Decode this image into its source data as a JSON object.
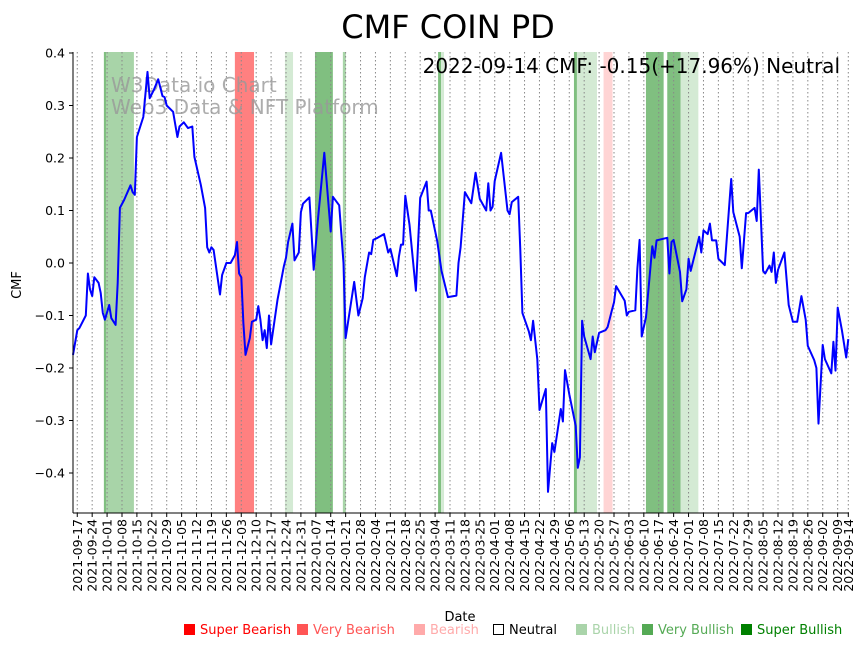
{
  "chart_data": {
    "type": "line",
    "title": "CMF COIN PD",
    "xlabel": "Date",
    "ylabel": "CMF",
    "annotation": "2022-09-14 CMF: -0.15(+17.96%) Neutral",
    "watermark": [
      "W3Data.io Chart",
      "Web3 Data & NFT Platform"
    ],
    "x_start_date": "2021-09-15",
    "x_unit": "days since x_start_date",
    "xlim_days": [
      0,
      364
    ],
    "ylim": [
      -0.477,
      0.4
    ],
    "yticks": [
      -0.4,
      -0.3,
      -0.2,
      -0.1,
      0.0,
      0.1,
      0.2,
      0.3,
      0.4
    ],
    "ytick_labels": [
      "−0.4",
      "−0.3",
      "−0.2",
      "−0.1",
      "0.0",
      "0.1",
      "0.2",
      "0.3",
      "0.4"
    ],
    "xtick_days": [
      2,
      9,
      16,
      23,
      30,
      37,
      44,
      51,
      58,
      65,
      72,
      79,
      86,
      93,
      100,
      107,
      114,
      121,
      128,
      135,
      142,
      149,
      156,
      163,
      170,
      177,
      184,
      191,
      198,
      205,
      212,
      219,
      226,
      233,
      240,
      247,
      254,
      261,
      268,
      275,
      282,
      289,
      296,
      303,
      310,
      317,
      324,
      331,
      338,
      345,
      352,
      359,
      364
    ],
    "xtick_labels": [
      "2021-09-17",
      "2021-09-24",
      "2021-10-01",
      "2021-10-08",
      "2021-10-15",
      "2021-10-22",
      "2021-10-29",
      "2021-11-05",
      "2021-11-12",
      "2021-11-19",
      "2021-11-26",
      "2021-12-03",
      "2021-12-10",
      "2021-12-17",
      "2021-12-24",
      "2021-12-31",
      "2022-01-07",
      "2022-01-14",
      "2022-01-21",
      "2022-01-28",
      "2022-02-04",
      "2022-02-11",
      "2022-02-18",
      "2022-02-25",
      "2022-03-04",
      "2022-03-11",
      "2022-03-18",
      "2022-03-25",
      "2022-04-01",
      "2022-04-08",
      "2022-04-15",
      "2022-04-22",
      "2022-04-29",
      "2022-05-06",
      "2022-05-13",
      "2022-05-20",
      "2022-05-27",
      "2022-06-03",
      "2022-06-10",
      "2022-06-17",
      "2022-06-24",
      "2022-07-01",
      "2022-07-08",
      "2022-07-15",
      "2022-07-22",
      "2022-07-29",
      "2022-08-05",
      "2022-08-12",
      "2022-08-19",
      "2022-08-26",
      "2022-09-02",
      "2022-09-09",
      "2022-09-14"
    ],
    "grid": "x-dotted",
    "line_color": "#0000ff",
    "series": [
      {
        "name": "CMF",
        "points": [
          [
            0,
            -0.175
          ],
          [
            2,
            -0.128
          ],
          [
            3,
            -0.124
          ],
          [
            6,
            -0.1
          ],
          [
            7,
            -0.02
          ],
          [
            8,
            -0.05
          ],
          [
            9,
            -0.063
          ],
          [
            10,
            -0.027
          ],
          [
            12,
            -0.038
          ],
          [
            13,
            -0.057
          ],
          [
            14,
            -0.095
          ],
          [
            15,
            -0.108
          ],
          [
            17,
            -0.08
          ],
          [
            18,
            -0.105
          ],
          [
            20,
            -0.118
          ],
          [
            21,
            -0.038
          ],
          [
            22,
            0.105
          ],
          [
            24,
            0.12
          ],
          [
            27,
            0.148
          ],
          [
            28,
            0.135
          ],
          [
            29,
            0.13
          ],
          [
            30,
            0.24
          ],
          [
            33,
            0.278
          ],
          [
            35,
            0.364
          ],
          [
            36,
            0.314
          ],
          [
            38,
            0.33
          ],
          [
            40,
            0.35
          ],
          [
            42,
            0.318
          ],
          [
            43,
            0.316
          ],
          [
            44,
            0.3
          ],
          [
            47,
            0.288
          ],
          [
            49,
            0.24
          ],
          [
            50,
            0.26
          ],
          [
            52,
            0.268
          ],
          [
            54,
            0.257
          ],
          [
            56,
            0.26
          ],
          [
            57,
            0.202
          ],
          [
            60,
            0.149
          ],
          [
            62,
            0.105
          ],
          [
            63,
            0.03
          ],
          [
            64,
            0.02
          ],
          [
            65,
            0.03
          ],
          [
            66,
            0.025
          ],
          [
            69,
            -0.06
          ],
          [
            70,
            -0.023
          ],
          [
            72,
            0.0
          ],
          [
            74,
            0.0
          ],
          [
            76,
            0.015
          ],
          [
            77,
            0.04
          ],
          [
            78,
            -0.02
          ],
          [
            79,
            -0.027
          ],
          [
            80,
            -0.115
          ],
          [
            81,
            -0.175
          ],
          [
            83,
            -0.143
          ],
          [
            84,
            -0.112
          ],
          [
            86,
            -0.108
          ],
          [
            87,
            -0.082
          ],
          [
            88,
            -0.108
          ],
          [
            89,
            -0.147
          ],
          [
            90,
            -0.128
          ],
          [
            91,
            -0.162
          ],
          [
            92,
            -0.1
          ],
          [
            93,
            -0.155
          ],
          [
            96,
            -0.07
          ],
          [
            99,
            -0.006
          ],
          [
            100,
            0.01
          ],
          [
            101,
            0.04
          ],
          [
            103,
            0.075
          ],
          [
            104,
            0.005
          ],
          [
            106,
            0.02
          ],
          [
            107,
            0.097
          ],
          [
            108,
            0.113
          ],
          [
            111,
            0.125
          ],
          [
            113,
            -0.013
          ],
          [
            115,
            0.082
          ],
          [
            118,
            0.21
          ],
          [
            121,
            0.06
          ],
          [
            122,
            0.126
          ],
          [
            125,
            0.11
          ],
          [
            127,
            0.0
          ],
          [
            128,
            -0.143
          ],
          [
            132,
            -0.036
          ],
          [
            134,
            -0.1
          ],
          [
            136,
            -0.067
          ],
          [
            137,
            -0.027
          ],
          [
            139,
            0.02
          ],
          [
            140,
            0.017
          ],
          [
            141,
            0.044
          ],
          [
            143,
            0.048
          ],
          [
            146,
            0.055
          ],
          [
            148,
            0.02
          ],
          [
            149,
            0.027
          ],
          [
            152,
            -0.025
          ],
          [
            153,
            0.012
          ],
          [
            154,
            0.035
          ],
          [
            155,
            0.035
          ],
          [
            156,
            0.128
          ],
          [
            158,
            0.073
          ],
          [
            161,
            -0.053
          ],
          [
            163,
            0.124
          ],
          [
            166,
            0.155
          ],
          [
            167,
            0.1
          ],
          [
            168,
            0.1
          ],
          [
            171,
            0.042
          ],
          [
            173,
            -0.015
          ],
          [
            176,
            -0.065
          ],
          [
            180,
            -0.062
          ],
          [
            181,
            0.0
          ],
          [
            182,
            0.03
          ],
          [
            184,
            0.135
          ],
          [
            187,
            0.114
          ],
          [
            189,
            0.172
          ],
          [
            191,
            0.122
          ],
          [
            194,
            0.1
          ],
          [
            195,
            0.152
          ],
          [
            196,
            0.1
          ],
          [
            197,
            0.107
          ],
          [
            198,
            0.156
          ],
          [
            201,
            0.21
          ],
          [
            204,
            0.1
          ],
          [
            205,
            0.093
          ],
          [
            206,
            0.116
          ],
          [
            209,
            0.126
          ],
          [
            210,
            0.025
          ],
          [
            211,
            -0.095
          ],
          [
            214,
            -0.13
          ],
          [
            215,
            -0.147
          ],
          [
            216,
            -0.11
          ],
          [
            218,
            -0.183
          ],
          [
            219,
            -0.28
          ],
          [
            222,
            -0.24
          ],
          [
            223,
            -0.436
          ],
          [
            225,
            -0.343
          ],
          [
            226,
            -0.36
          ],
          [
            229,
            -0.278
          ],
          [
            230,
            -0.302
          ],
          [
            231,
            -0.204
          ],
          [
            233,
            -0.25
          ],
          [
            236,
            -0.31
          ],
          [
            237,
            -0.39
          ],
          [
            238,
            -0.37
          ],
          [
            239,
            -0.11
          ],
          [
            240,
            -0.14
          ],
          [
            243,
            -0.183
          ],
          [
            244,
            -0.14
          ],
          [
            245,
            -0.17
          ],
          [
            247,
            -0.133
          ],
          [
            250,
            -0.128
          ],
          [
            251,
            -0.122
          ],
          [
            253,
            -0.09
          ],
          [
            254,
            -0.075
          ],
          [
            255,
            -0.044
          ],
          [
            259,
            -0.072
          ],
          [
            260,
            -0.1
          ],
          [
            261,
            -0.093
          ],
          [
            264,
            -0.09
          ],
          [
            265,
            -0.01
          ],
          [
            266,
            0.044
          ],
          [
            267,
            -0.14
          ],
          [
            269,
            -0.103
          ],
          [
            272,
            0.032
          ],
          [
            273,
            0.01
          ],
          [
            274,
            0.043
          ],
          [
            279,
            0.048
          ],
          [
            280,
            -0.02
          ],
          [
            281,
            0.04
          ],
          [
            282,
            0.044
          ],
          [
            285,
            -0.017
          ],
          [
            286,
            -0.073
          ],
          [
            288,
            -0.05
          ],
          [
            289,
            0.008
          ],
          [
            290,
            -0.015
          ],
          [
            294,
            0.05
          ],
          [
            295,
            0.02
          ],
          [
            296,
            0.062
          ],
          [
            298,
            0.055
          ],
          [
            299,
            0.075
          ],
          [
            300,
            0.043
          ],
          [
            302,
            0.043
          ],
          [
            303,
            0.008
          ],
          [
            306,
            -0.004
          ],
          [
            309,
            0.16
          ],
          [
            310,
            0.097
          ],
          [
            313,
            0.05
          ],
          [
            314,
            -0.01
          ],
          [
            316,
            0.095
          ],
          [
            317,
            0.095
          ],
          [
            320,
            0.105
          ],
          [
            321,
            0.08
          ],
          [
            322,
            0.178
          ],
          [
            324,
            -0.015
          ],
          [
            325,
            -0.02
          ],
          [
            327,
            -0.005
          ],
          [
            328,
            -0.017
          ],
          [
            329,
            0.02
          ],
          [
            330,
            -0.038
          ],
          [
            331,
            -0.013
          ],
          [
            334,
            0.02
          ],
          [
            336,
            -0.08
          ],
          [
            338,
            -0.112
          ],
          [
            340,
            -0.112
          ],
          [
            342,
            -0.063
          ],
          [
            344,
            -0.108
          ],
          [
            345,
            -0.158
          ],
          [
            348,
            -0.185
          ],
          [
            349,
            -0.2
          ],
          [
            350,
            -0.306
          ],
          [
            352,
            -0.156
          ],
          [
            353,
            -0.183
          ],
          [
            356,
            -0.21
          ],
          [
            357,
            -0.15
          ],
          [
            358,
            -0.205
          ],
          [
            359,
            -0.085
          ],
          [
            361,
            -0.128
          ],
          [
            363,
            -0.18
          ],
          [
            364,
            -0.145
          ]
        ]
      }
    ],
    "signal_bands": [
      {
        "start": 14.5,
        "end": 15.5,
        "signal": "super_bullish"
      },
      {
        "start": 15.5,
        "end": 28.6,
        "signal": "very_bullish"
      },
      {
        "start": 76,
        "end": 85,
        "signal": "super_bearish"
      },
      {
        "start": 99.5,
        "end": 103.3,
        "signal": "bullish"
      },
      {
        "start": 113.6,
        "end": 122,
        "signal": "super_bullish"
      },
      {
        "start": 126.7,
        "end": 128.1,
        "signal": "very_bullish"
      },
      {
        "start": 171.4,
        "end": 172.8,
        "signal": "super_bullish"
      },
      {
        "start": 172.8,
        "end": 174.2,
        "signal": "bullish"
      },
      {
        "start": 235.2,
        "end": 236.6,
        "signal": "super_bullish"
      },
      {
        "start": 236.6,
        "end": 246,
        "signal": "bullish"
      },
      {
        "start": 249.1,
        "end": 253.3,
        "signal": "bearish"
      },
      {
        "start": 269,
        "end": 277.3,
        "signal": "super_bullish"
      },
      {
        "start": 279,
        "end": 285.3,
        "signal": "super_bullish"
      },
      {
        "start": 285.3,
        "end": 293.6,
        "signal": "bullish"
      }
    ],
    "legend": [
      {
        "key": "super_bearish",
        "label": "Super Bearish",
        "color": "#ff0000",
        "band": "#ff8080"
      },
      {
        "key": "very_bearish",
        "label": "Very Bearish",
        "color": "#ff5555",
        "band": "#ffaaaa"
      },
      {
        "key": "bearish",
        "label": "Bearish",
        "color": "#ffaaaa",
        "band": "#ffd4d4"
      },
      {
        "key": "neutral",
        "label": "Neutral",
        "color": "#000000",
        "band": "none"
      },
      {
        "key": "bullish",
        "label": "Bullish",
        "color": "#aad4aa",
        "band": "#d4ead4"
      },
      {
        "key": "very_bullish",
        "label": "Very Bullish",
        "color": "#55aa55",
        "band": "#a8d4a8"
      },
      {
        "key": "super_bullish",
        "label": "Super Bullish",
        "color": "#008000",
        "band": "#80bf80"
      }
    ],
    "legend_placement": "bottom-center"
  }
}
